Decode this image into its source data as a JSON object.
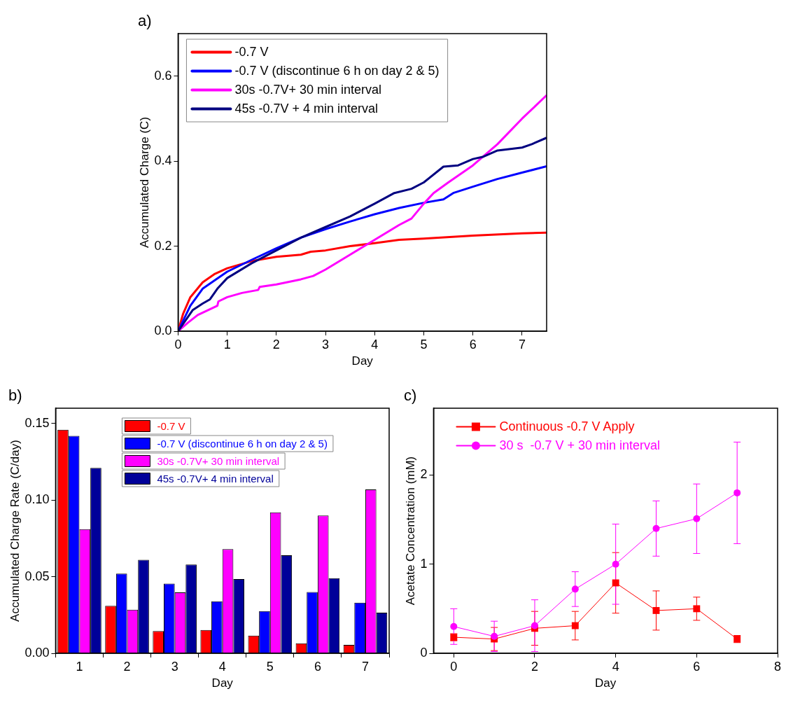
{
  "chart_data": [
    {
      "type": "line",
      "title": "a)",
      "xlabel": "Day",
      "ylabel": "Accumulated Charge (C)",
      "xlim": [
        0,
        7.5
      ],
      "xticks": [
        0,
        1,
        2,
        3,
        4,
        5,
        6,
        7
      ],
      "ylim": [
        0,
        0.7
      ],
      "yticks": [
        {
          "value": 0,
          "label": "0.0"
        },
        0.2,
        0.4,
        0.6
      ],
      "marker": "none",
      "legend": "top left",
      "series": [
        {
          "name": "-0.7 V",
          "color": "#ff0000",
          "x": [
            0,
            0.1,
            0.25,
            0.5,
            0.75,
            1,
            1.5,
            2,
            2.5,
            2.7,
            3,
            3.5,
            4,
            4.5,
            5,
            6,
            7,
            7.5
          ],
          "values": [
            0,
            0.04,
            0.08,
            0.115,
            0.135,
            0.148,
            0.165,
            0.175,
            0.18,
            0.187,
            0.19,
            0.2,
            0.207,
            0.215,
            0.218,
            0.225,
            0.23,
            0.232
          ]
        },
        {
          "name": "-0.7 V (discontinue 6 h on day 2 & 5)",
          "color": "#0000ff",
          "x": [
            0,
            0.25,
            0.5,
            1,
            1.5,
            2,
            2.5,
            3,
            3.5,
            4,
            4.5,
            5,
            5.4,
            5.6,
            6,
            6.5,
            7,
            7.5
          ],
          "values": [
            0,
            0.06,
            0.1,
            0.14,
            0.168,
            0.195,
            0.22,
            0.24,
            0.258,
            0.275,
            0.29,
            0.302,
            0.31,
            0.325,
            0.34,
            0.358,
            0.373,
            0.388
          ]
        },
        {
          "name": "30s -0.7V+ 30 min interval",
          "color": "#ff00ff",
          "x": [
            0,
            0.2,
            0.4,
            0.8,
            0.82,
            1,
            1.3,
            1.63,
            1.66,
            2,
            2.5,
            2.75,
            3,
            3.5,
            4,
            4.5,
            4.75,
            5,
            5.2,
            5.5,
            6,
            6.5,
            7,
            7.5
          ],
          "values": [
            0,
            0.02,
            0.038,
            0.06,
            0.07,
            0.08,
            0.09,
            0.097,
            0.104,
            0.11,
            0.122,
            0.13,
            0.145,
            0.18,
            0.215,
            0.25,
            0.265,
            0.3,
            0.325,
            0.35,
            0.39,
            0.44,
            0.5,
            0.555
          ]
        },
        {
          "name": "45s -0.7V + 4 min interval",
          "color": "#000080",
          "x": [
            0,
            0.3,
            0.5,
            0.65,
            0.8,
            1,
            1.5,
            2,
            2.5,
            3,
            3.5,
            4,
            4.4,
            4.75,
            5,
            5.4,
            5.7,
            6,
            6.2,
            6.5,
            7,
            7.2,
            7.5
          ],
          "values": [
            0,
            0.05,
            0.065,
            0.075,
            0.1,
            0.125,
            0.16,
            0.19,
            0.22,
            0.245,
            0.27,
            0.3,
            0.325,
            0.335,
            0.35,
            0.387,
            0.39,
            0.405,
            0.41,
            0.425,
            0.432,
            0.44,
            0.455
          ]
        }
      ]
    },
    {
      "type": "bar",
      "title": "b)",
      "xlabel": "Day",
      "ylabel": "Accumulated Charge Rate (C/day)",
      "categories": [
        "1",
        "2",
        "3",
        "4",
        "5",
        "6",
        "7"
      ],
      "ylim": [
        0,
        0.16
      ],
      "yticks": [
        {
          "value": 0,
          "label": "0.00"
        },
        {
          "value": 0.05,
          "label": "0.05"
        },
        {
          "value": 0.1,
          "label": "0.10"
        },
        {
          "value": 0.15,
          "label": "0.15"
        }
      ],
      "legend": "top left",
      "series": [
        {
          "name": "-0.7 V",
          "color": "#ff0000",
          "values": [
            0.146,
            0.031,
            0.0145,
            0.0152,
            0.0115,
            0.0065,
            0.0055
          ]
        },
        {
          "name": "-0.7 V (discontinue 6 h on day 2 & 5)",
          "color": "#0000ff",
          "values": [
            0.142,
            0.052,
            0.0455,
            0.034,
            0.0275,
            0.04,
            0.033
          ]
        },
        {
          "name": "30s -0.7V+ 30 min interval",
          "color": "#ff00ff",
          "values": [
            0.081,
            0.0285,
            0.0398,
            0.068,
            0.092,
            0.09,
            0.107
          ]
        },
        {
          "name": "45s -0.7V+ 4 min interval",
          "color": "#000099",
          "values": [
            0.121,
            0.061,
            0.058,
            0.0485,
            0.064,
            0.049,
            0.0265
          ]
        }
      ]
    },
    {
      "type": "line",
      "title": "c)",
      "xlabel": "Day",
      "ylabel": "Acetate Concentration (mM)",
      "x": [
        0,
        1,
        2,
        3,
        4,
        5,
        6,
        7
      ],
      "xlim": [
        -0.5,
        8
      ],
      "xticks": [
        0,
        2,
        4,
        6,
        8
      ],
      "ylim": [
        0,
        2.75
      ],
      "yticks": [
        0,
        1,
        2
      ],
      "legend": "top left",
      "series": [
        {
          "name": "Continuous -0.7 V Apply",
          "color": "#ff0000",
          "marker": "square",
          "values": [
            0.18,
            0.16,
            0.28,
            0.31,
            0.79,
            0.48,
            0.5,
            0.16
          ],
          "errors": [
            0.04,
            0.13,
            0.19,
            0.16,
            0.34,
            0.22,
            0.13,
            0.04
          ]
        },
        {
          "name": "30 s  -0.7 V + 30 min interval",
          "color": "#ff00ff",
          "marker": "circle",
          "values": [
            0.3,
            0.19,
            0.31,
            0.72,
            1.0,
            1.4,
            1.51,
            1.8
          ],
          "errors": [
            0.2,
            0.17,
            0.29,
            0.195,
            0.45,
            0.31,
            0.39,
            0.57
          ]
        }
      ]
    }
  ]
}
